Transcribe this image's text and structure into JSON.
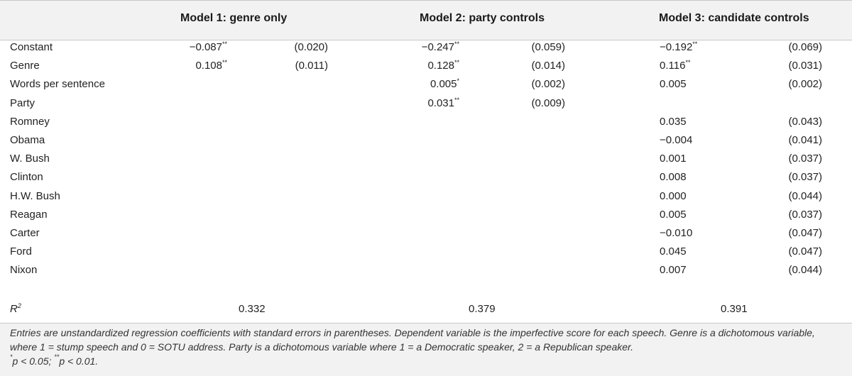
{
  "headers": {
    "model1": "Model 1: genre only",
    "model2": "Model 2: party controls",
    "model3": "Model 3: candidate controls"
  },
  "rows": [
    {
      "label": "Constant",
      "m1": {
        "coef": "−0.087",
        "stars": "**",
        "se": "(0.020)"
      },
      "m2": {
        "coef": "−0.247",
        "stars": "**",
        "se": "(0.059)"
      },
      "m3": {
        "coef": "−0.192",
        "stars": "**",
        "se": "(0.069)"
      }
    },
    {
      "label": "Genre",
      "m1": {
        "coef": "0.108",
        "stars": "**",
        "se": "(0.011)"
      },
      "m2": {
        "coef": "0.128",
        "stars": "**",
        "se": "(0.014)"
      },
      "m3": {
        "coef": "0.116",
        "stars": "**",
        "se": "(0.031)"
      }
    },
    {
      "label": "Words per sentence",
      "m1": {
        "coef": "",
        "stars": "",
        "se": ""
      },
      "m2": {
        "coef": "0.005",
        "stars": "*",
        "se": "(0.002)"
      },
      "m3": {
        "coef": "0.005",
        "stars": "",
        "se": "(0.002)"
      }
    },
    {
      "label": "Party",
      "m1": {
        "coef": "",
        "stars": "",
        "se": ""
      },
      "m2": {
        "coef": "0.031",
        "stars": "**",
        "se": "(0.009)"
      },
      "m3": {
        "coef": "",
        "stars": "",
        "se": ""
      }
    },
    {
      "label": "Romney",
      "m1": {
        "coef": "",
        "stars": "",
        "se": ""
      },
      "m2": {
        "coef": "",
        "stars": "",
        "se": ""
      },
      "m3": {
        "coef": "0.035",
        "stars": "",
        "se": "(0.043)"
      }
    },
    {
      "label": "Obama",
      "m1": {
        "coef": "",
        "stars": "",
        "se": ""
      },
      "m2": {
        "coef": "",
        "stars": "",
        "se": ""
      },
      "m3": {
        "coef": "−0.004",
        "stars": "",
        "se": "(0.041)"
      }
    },
    {
      "label": "W. Bush",
      "m1": {
        "coef": "",
        "stars": "",
        "se": ""
      },
      "m2": {
        "coef": "",
        "stars": "",
        "se": ""
      },
      "m3": {
        "coef": "0.001",
        "stars": "",
        "se": "(0.037)"
      }
    },
    {
      "label": "Clinton",
      "m1": {
        "coef": "",
        "stars": "",
        "se": ""
      },
      "m2": {
        "coef": "",
        "stars": "",
        "se": ""
      },
      "m3": {
        "coef": "0.008",
        "stars": "",
        "se": "(0.037)"
      }
    },
    {
      "label": "H.W. Bush",
      "m1": {
        "coef": "",
        "stars": "",
        "se": ""
      },
      "m2": {
        "coef": "",
        "stars": "",
        "se": ""
      },
      "m3": {
        "coef": "0.000",
        "stars": "",
        "se": "(0.044)"
      }
    },
    {
      "label": "Reagan",
      "m1": {
        "coef": "",
        "stars": "",
        "se": ""
      },
      "m2": {
        "coef": "",
        "stars": "",
        "se": ""
      },
      "m3": {
        "coef": "0.005",
        "stars": "",
        "se": "(0.037)"
      }
    },
    {
      "label": "Carter",
      "m1": {
        "coef": "",
        "stars": "",
        "se": ""
      },
      "m2": {
        "coef": "",
        "stars": "",
        "se": ""
      },
      "m3": {
        "coef": "−0.010",
        "stars": "",
        "se": "(0.047)"
      }
    },
    {
      "label": "Ford",
      "m1": {
        "coef": "",
        "stars": "",
        "se": ""
      },
      "m2": {
        "coef": "",
        "stars": "",
        "se": ""
      },
      "m3": {
        "coef": "0.045",
        "stars": "",
        "se": "(0.047)"
      }
    },
    {
      "label": "Nixon",
      "m1": {
        "coef": "",
        "stars": "",
        "se": ""
      },
      "m2": {
        "coef": "",
        "stars": "",
        "se": ""
      },
      "m3": {
        "coef": "0.007",
        "stars": "",
        "se": "(0.044)"
      }
    }
  ],
  "r_squared": {
    "label_base": "R",
    "label_sup": "2",
    "m1": "0.332",
    "m2": "0.379",
    "m3": "0.391"
  },
  "footnote": {
    "text": "Entries are unstandardized regression coefficients with standard errors in parentheses. Dependent variable is the imperfective score for each speech. Genre is a dichotomous variable, where 1 = stump speech and 0 = SOTU address. Party is a dichotomous variable where 1 = a Democratic speaker, 2 = a Republican speaker.",
    "sig1_stars": "*",
    "sig1": "p < 0.05; ",
    "sig2_stars": "**",
    "sig2": "p < 0.01."
  }
}
